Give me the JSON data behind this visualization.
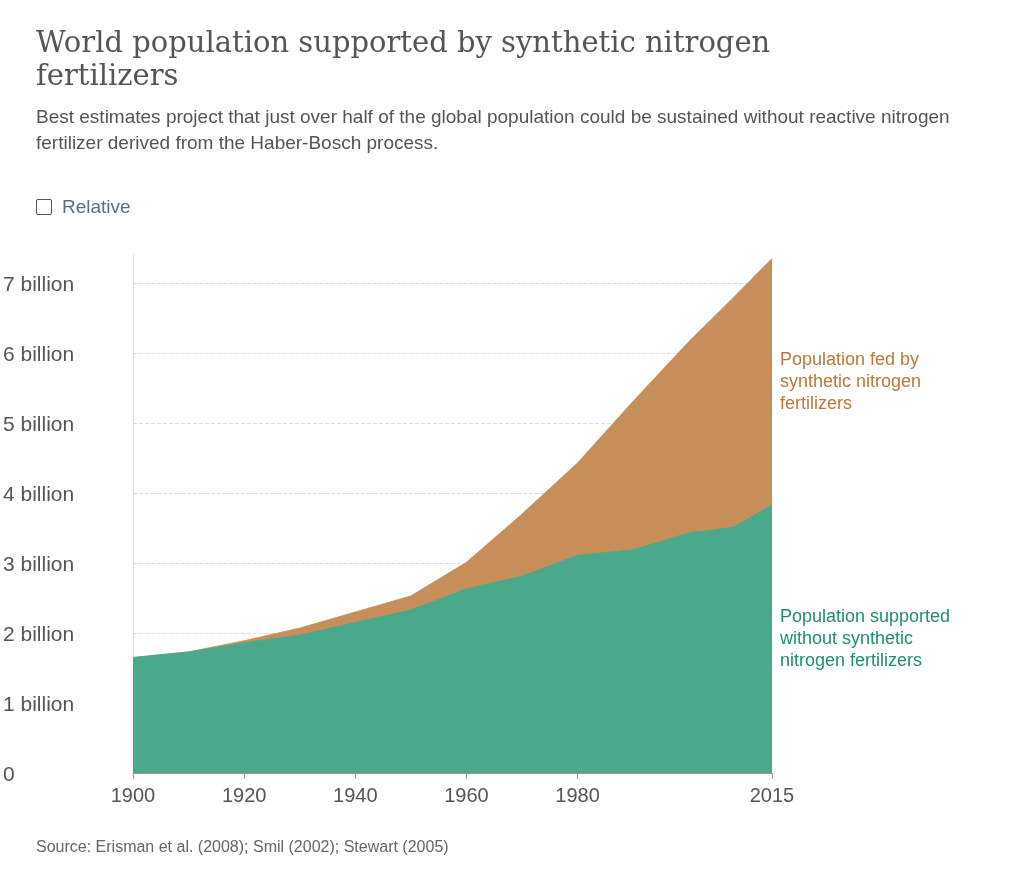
{
  "chart_data": {
    "type": "area",
    "stacked": true,
    "title": "World population supported by synthetic nitrogen fertilizers",
    "subtitle": "Best estimates project that just over half of the global population could be sustained without reactive nitrogen fertilizer derived from the Haber-Bosch process.",
    "x": [
      1900,
      1910,
      1920,
      1930,
      1940,
      1950,
      1960,
      1970,
      1980,
      1990,
      2000,
      2008,
      2015
    ],
    "series": [
      {
        "name": "Population supported without synthetic nitrogen fertilizers",
        "color": "#4aa98d",
        "values": [
          1.65,
          1.73,
          1.86,
          1.97,
          2.15,
          2.33,
          2.63,
          2.81,
          3.11,
          3.19,
          3.43,
          3.51,
          3.83
        ]
      },
      {
        "name": "Population fed by synthetic nitrogen fertilizers",
        "color": "#c68e58",
        "values": [
          0,
          0,
          0.03,
          0.1,
          0.15,
          0.2,
          0.38,
          0.89,
          1.32,
          2.12,
          2.73,
          3.28,
          3.52
        ]
      }
    ],
    "xlim": [
      1900,
      2015
    ],
    "xticks": [
      1900,
      1920,
      1940,
      1960,
      1980,
      2015
    ],
    "ylim": [
      0,
      7.4
    ],
    "yticks": [
      0,
      {
        "value": 1,
        "label": "1 billion"
      },
      {
        "value": 2,
        "label": "2 billion"
      },
      {
        "value": 3,
        "label": "3 billion"
      },
      {
        "value": 4,
        "label": "4 billion"
      },
      {
        "value": 5,
        "label": "5 billion"
      },
      {
        "value": 6,
        "label": "6 billion"
      },
      {
        "value": 7,
        "label": "7 billion"
      }
    ],
    "grid": "y",
    "legend": false,
    "marker": "none",
    "annotations": [
      "Relative",
      "Source: Erisman et al. (2008); Smil (2002); Stewart (2005)"
    ]
  }
}
